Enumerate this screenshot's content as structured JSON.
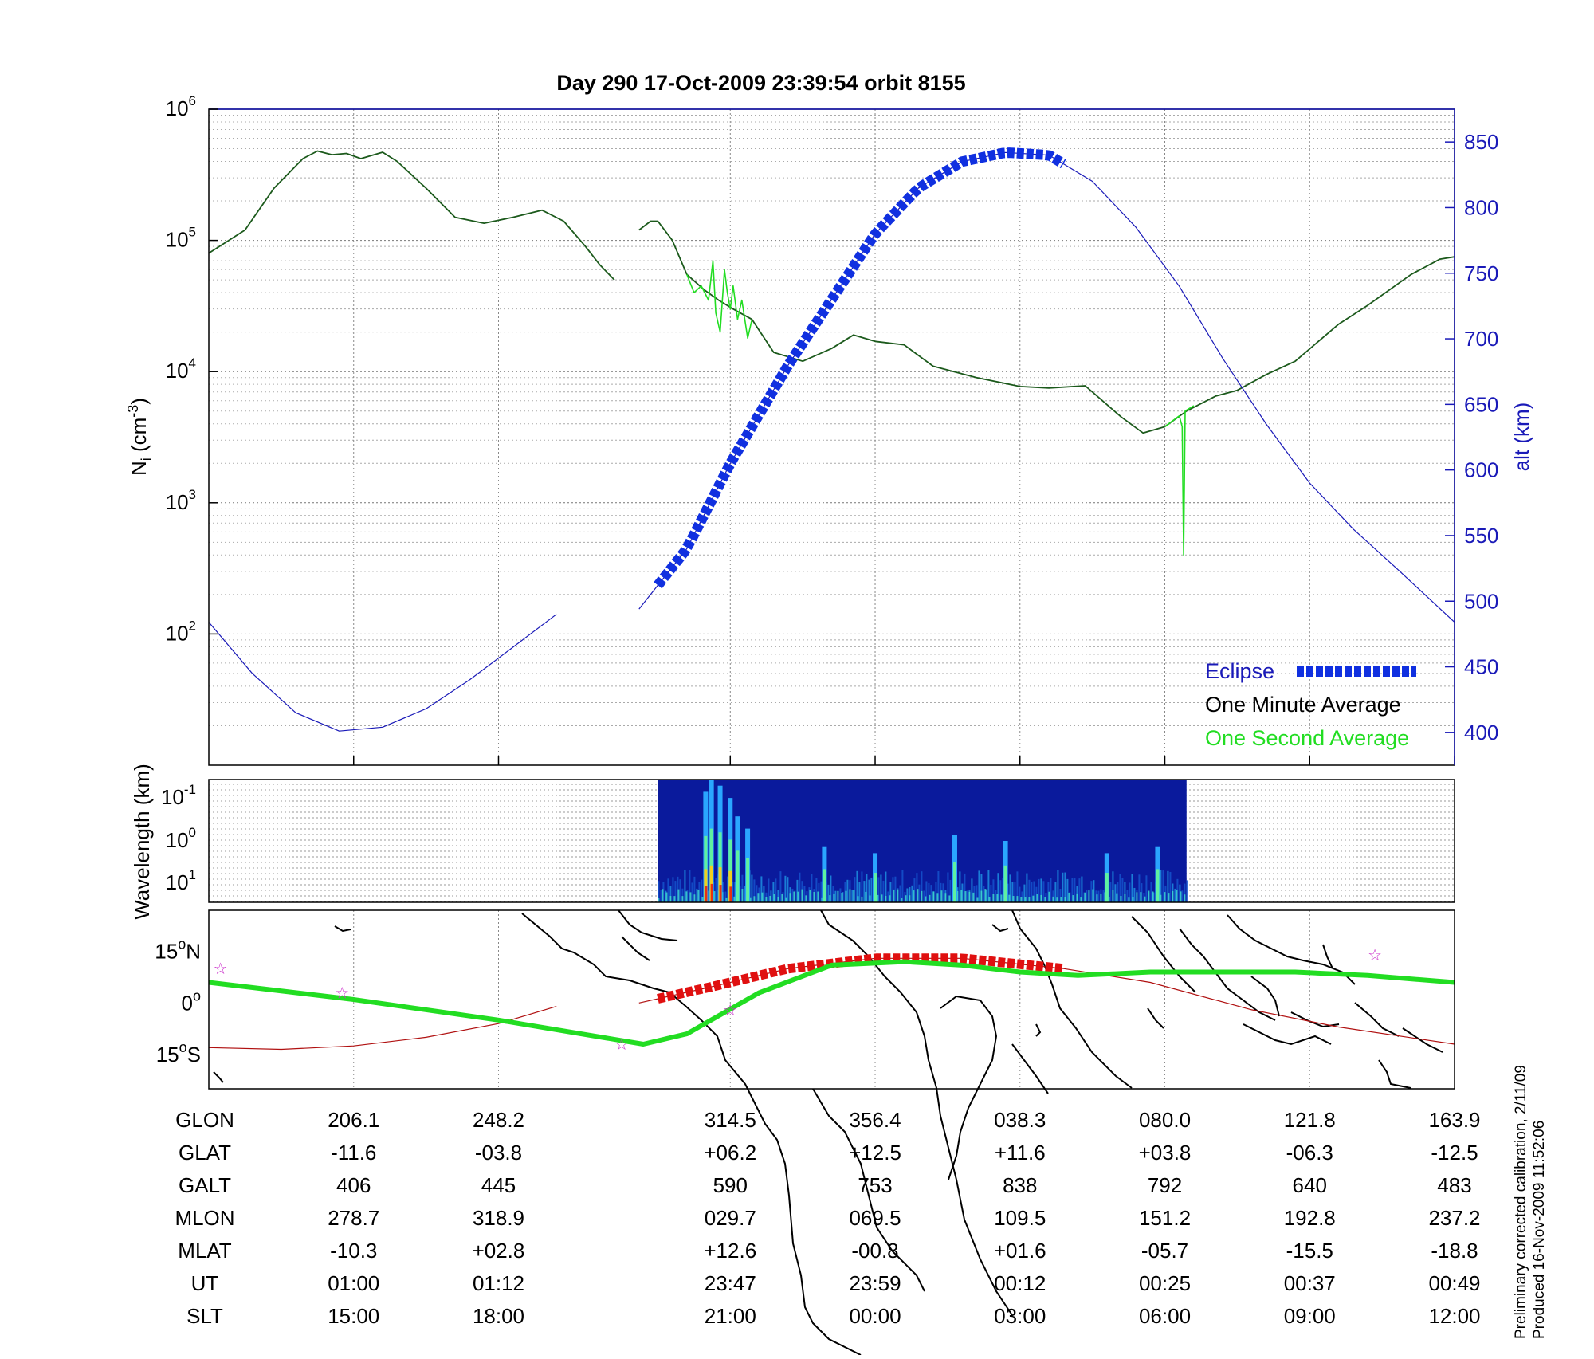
{
  "title": "Day 290  17-Oct-2009 23:39:54   orbit 8155",
  "footnote": {
    "line1": "Preliminary corrected calibration, 2/11/09",
    "line2": "Produced 16-Nov-2009 11:52:06"
  },
  "colors": {
    "one_minute": "#1c5a1c",
    "one_second": "#22dd22",
    "altitude": "#1a1ab8",
    "eclipse": "#1030e0",
    "eclipse_map": "#e01010",
    "ground_track": "#22dd22",
    "orbit_track": "#b01010",
    "stars": "#cc33cc"
  },
  "chart_data": [
    {
      "type": "line",
      "name": "density-panel",
      "ylabel": "N_i (cm^-3)",
      "ylabel_parts": {
        "main": "N",
        "sub": "i",
        "unit_open": " (cm",
        "unit_sup": "-3",
        "unit_close": ")"
      },
      "y2label": "alt (km)",
      "yscale": "log",
      "ylim": [
        10,
        1000000
      ],
      "y_ticks": [
        {
          "base": "10",
          "exp": "2",
          "value": 100
        },
        {
          "base": "10",
          "exp": "3",
          "value": 1000
        },
        {
          "base": "10",
          "exp": "4",
          "value": 10000
        },
        {
          "base": "10",
          "exp": "5",
          "value": 100000
        },
        {
          "base": "10",
          "exp": "6",
          "value": 1000000
        }
      ],
      "y2lim": [
        375,
        875
      ],
      "y2_ticks": [
        "400",
        "450",
        "500",
        "550",
        "600",
        "650",
        "700",
        "750",
        "800",
        "850"
      ],
      "xlim": [
        0,
        8.6
      ],
      "x_ticks": [
        1,
        2,
        3.6,
        4.6,
        5.6,
        6.6,
        7.6,
        8.6
      ],
      "legend": {
        "eclipse": "Eclipse",
        "one_minute": "One Minute Average",
        "one_second": "One Second Average",
        "position": "bottom-right"
      },
      "series": [
        {
          "key": "one_minute",
          "segments": [
            [
              [
                0,
                80000
              ],
              [
                0.25,
                120000
              ],
              [
                0.45,
                250000
              ],
              [
                0.65,
                420000
              ],
              [
                0.75,
                480000
              ],
              [
                0.85,
                450000
              ],
              [
                0.95,
                460000
              ],
              [
                1.05,
                420000
              ],
              [
                1.2,
                470000
              ],
              [
                1.3,
                400000
              ],
              [
                1.5,
                250000
              ],
              [
                1.7,
                150000
              ],
              [
                1.9,
                135000
              ],
              [
                2.1,
                150000
              ],
              [
                2.3,
                170000
              ],
              [
                2.45,
                140000
              ],
              [
                2.6,
                90000
              ],
              [
                2.7,
                65000
              ],
              [
                2.8,
                50000
              ]
            ],
            [
              [
                2.97,
                120000
              ],
              [
                3.05,
                140000
              ],
              [
                3.1,
                140000
              ],
              [
                3.2,
                100000
              ],
              [
                3.3,
                55000
              ],
              [
                3.42,
                42000
              ],
              [
                3.52,
                35000
              ],
              [
                3.62,
                30000
              ],
              [
                3.75,
                25000
              ],
              [
                3.9,
                14000
              ],
              [
                4.1,
                12000
              ],
              [
                4.3,
                15000
              ],
              [
                4.45,
                19000
              ],
              [
                4.6,
                17000
              ],
              [
                4.8,
                16000
              ],
              [
                5.0,
                11000
              ],
              [
                5.3,
                9000
              ],
              [
                5.6,
                7700
              ],
              [
                5.8,
                7500
              ],
              [
                6.05,
                7800
              ],
              [
                6.3,
                4500
              ],
              [
                6.45,
                3400
              ],
              [
                6.6,
                3800
              ],
              [
                6.75,
                5000
              ],
              [
                6.95,
                6500
              ],
              [
                7.1,
                7200
              ],
              [
                7.3,
                9500
              ],
              [
                7.5,
                12000
              ],
              [
                7.8,
                23000
              ],
              [
                8.0,
                32000
              ],
              [
                8.3,
                55000
              ],
              [
                8.5,
                72000
              ],
              [
                8.6,
                75000
              ]
            ]
          ]
        },
        {
          "key": "one_second",
          "segments": [
            [
              [
                3.3,
                55000
              ],
              [
                3.35,
                40000
              ],
              [
                3.4,
                45000
              ],
              [
                3.45,
                35000
              ],
              [
                3.48,
                70000
              ],
              [
                3.5,
                28000
              ],
              [
                3.53,
                20000
              ],
              [
                3.56,
                60000
              ],
              [
                3.58,
                40000
              ],
              [
                3.6,
                30000
              ],
              [
                3.62,
                45000
              ],
              [
                3.65,
                25000
              ],
              [
                3.68,
                35000
              ],
              [
                3.72,
                18000
              ],
              [
                3.75,
                25000
              ]
            ],
            [
              [
                6.6,
                3800
              ],
              [
                6.7,
                4600
              ],
              [
                6.72,
                3800
              ],
              [
                6.73,
                400
              ],
              [
                6.74,
                5000
              ],
              [
                6.8,
                5500
              ]
            ]
          ]
        },
        {
          "key": "altitude",
          "axis": "y2",
          "segments": [
            [
              [
                0,
                484
              ],
              [
                0.3,
                445
              ],
              [
                0.6,
                415
              ],
              [
                0.9,
                401
              ],
              [
                1.2,
                404
              ],
              [
                1.5,
                418
              ],
              [
                1.8,
                440
              ],
              [
                2.1,
                465
              ],
              [
                2.4,
                490
              ]
            ],
            [
              [
                2.97,
                494
              ],
              [
                3.3,
                540
              ],
              [
                3.6,
                605
              ],
              [
                4.0,
                680
              ],
              [
                4.3,
                730
              ],
              [
                4.6,
                780
              ],
              [
                4.9,
                815
              ],
              [
                5.2,
                835
              ],
              [
                5.5,
                842
              ],
              [
                5.8,
                840
              ],
              [
                6.1,
                820
              ],
              [
                6.4,
                785
              ],
              [
                6.7,
                740
              ],
              [
                7.0,
                685
              ],
              [
                7.3,
                635
              ],
              [
                7.6,
                590
              ],
              [
                7.9,
                555
              ],
              [
                8.2,
                525
              ],
              [
                8.6,
                484
              ]
            ]
          ]
        },
        {
          "key": "eclipse",
          "axis": "y2",
          "x": [
            3.1,
            5.9
          ]
        }
      ]
    },
    {
      "type": "heatmap",
      "name": "wavelength-panel",
      "ylabel": "Wavelength (km)",
      "yscale": "log",
      "y_ticks": [
        {
          "base": "10",
          "exp": "-1"
        },
        {
          "base": "10",
          "exp": "0"
        },
        {
          "base": "10",
          "exp": "1"
        }
      ],
      "xlim": [
        0,
        8.6
      ],
      "data_extent_x": [
        3.1,
        6.75
      ],
      "hot_columns": [
        {
          "x": 3.43,
          "level": 0.9
        },
        {
          "x": 3.47,
          "level": 1.0
        },
        {
          "x": 3.53,
          "level": 0.95
        },
        {
          "x": 3.6,
          "level": 0.85
        },
        {
          "x": 3.65,
          "level": 0.7
        },
        {
          "x": 3.72,
          "level": 0.6
        },
        {
          "x": 4.25,
          "level": 0.45
        },
        {
          "x": 4.6,
          "level": 0.4
        },
        {
          "x": 5.15,
          "level": 0.55
        },
        {
          "x": 5.5,
          "level": 0.5
        },
        {
          "x": 6.2,
          "level": 0.4
        },
        {
          "x": 6.55,
          "level": 0.45
        }
      ]
    },
    {
      "type": "map",
      "name": "ground-track-panel",
      "y_ticks": [
        {
          "deg": "15",
          "hemi": "N",
          "value": 15
        },
        {
          "deg": "0",
          "hemi": "",
          "value": 0
        },
        {
          "deg": "15",
          "hemi": "S",
          "value": -15
        }
      ],
      "ylim": [
        -25,
        27
      ],
      "xlim": [
        0,
        8.6
      ],
      "ground_track": [
        [
          0,
          6
        ],
        [
          1,
          1
        ],
        [
          2,
          -5
        ],
        [
          3,
          -12
        ],
        [
          3.3,
          -9
        ],
        [
          3.8,
          3
        ],
        [
          4.3,
          11
        ],
        [
          4.8,
          12
        ],
        [
          5.2,
          11
        ],
        [
          5.6,
          9
        ],
        [
          6.0,
          8
        ],
        [
          6.5,
          9
        ],
        [
          7.0,
          9
        ],
        [
          7.5,
          9
        ],
        [
          8.0,
          8
        ],
        [
          8.6,
          6
        ]
      ],
      "orbit_track": [
        [
          [
            0,
            -13
          ],
          [
            0.5,
            -13.5
          ],
          [
            1,
            -12.5
          ],
          [
            1.5,
            -10
          ],
          [
            2.0,
            -6
          ],
          [
            2.4,
            -1
          ]
        ],
        [
          [
            2.97,
            0
          ],
          [
            3.5,
            5
          ],
          [
            4.0,
            10
          ],
          [
            4.6,
            13
          ],
          [
            5.2,
            13
          ],
          [
            5.9,
            10
          ],
          [
            6.5,
            6
          ],
          [
            7.2,
            -2
          ],
          [
            7.8,
            -7
          ],
          [
            8.6,
            -12
          ]
        ]
      ],
      "eclipse_x": [
        3.1,
        5.9
      ],
      "stars": [
        [
          0.08,
          10
        ],
        [
          0.92,
          3
        ],
        [
          2.85,
          -12
        ],
        [
          3.6,
          -2
        ],
        [
          8.05,
          14
        ]
      ]
    }
  ],
  "table": {
    "rows": [
      {
        "label": "GLON",
        "values": [
          "206.1",
          "248.2",
          "314.5",
          "356.4",
          "038.3",
          "080.0",
          "121.8",
          "163.9"
        ]
      },
      {
        "label": "GLAT",
        "values": [
          "-11.6",
          "-03.8",
          "+06.2",
          "+12.5",
          "+11.6",
          "+03.8",
          "-06.3",
          "-12.5"
        ]
      },
      {
        "label": "GALT",
        "values": [
          "406",
          "445",
          "590",
          "753",
          "838",
          "792",
          "640",
          "483"
        ]
      },
      {
        "label": "MLON",
        "values": [
          "278.7",
          "318.9",
          "029.7",
          "069.5",
          "109.5",
          "151.2",
          "192.8",
          "237.2"
        ]
      },
      {
        "label": "MLAT",
        "values": [
          "-10.3",
          "+02.8",
          "+12.6",
          "-00.8",
          "+01.6",
          "-05.7",
          "-15.5",
          "-18.8"
        ]
      },
      {
        "label": "UT",
        "values": [
          "01:00",
          "01:12",
          "23:47",
          "23:59",
          "00:12",
          "00:25",
          "00:37",
          "00:49"
        ]
      },
      {
        "label": "SLT",
        "values": [
          "15:00",
          "18:00",
          "21:00",
          "00:00",
          "03:00",
          "06:00",
          "09:00",
          "12:00"
        ]
      }
    ]
  }
}
